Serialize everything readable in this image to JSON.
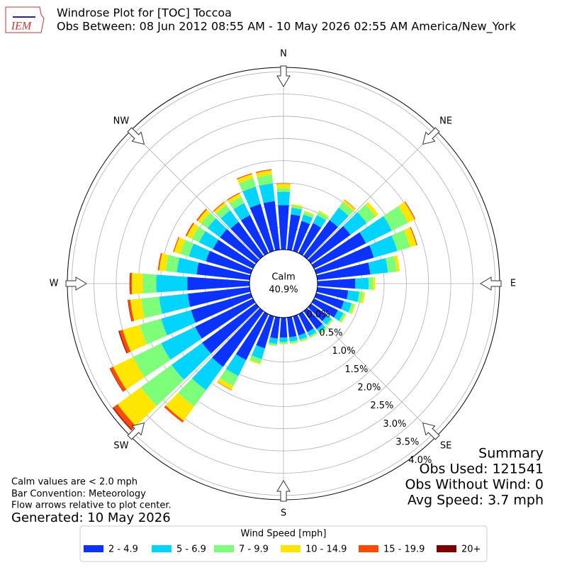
{
  "chart_data": {
    "type": "windrose",
    "logo": "IEM",
    "title": "Windrose Plot for [TOC] Toccoa",
    "subtitle": "Obs Between: 08 Jun 2012 08:55 AM - 10 May 2026 02:55 AM America/New_York",
    "compass_labels": [
      "N",
      "NE",
      "E",
      "SE",
      "S",
      "SW",
      "W",
      "NW"
    ],
    "calm": {
      "label": "Calm",
      "value": 40.9,
      "value_label": "40.9%"
    },
    "ylim": [
      0,
      4.1
    ],
    "yticks": [
      {
        "value": 0,
        "label": "0.0%"
      },
      {
        "value": 0.5,
        "label": "0.5%"
      },
      {
        "value": 1,
        "label": "1.0%"
      },
      {
        "value": 1.5,
        "label": "1.5%"
      },
      {
        "value": 2,
        "label": "2.0%"
      },
      {
        "value": 2.5,
        "label": "2.5%"
      },
      {
        "value": 3,
        "label": "3.0%"
      },
      {
        "value": 3.5,
        "label": "3.5%"
      },
      {
        "value": 4,
        "label": "4.0%"
      }
    ],
    "grid": true,
    "legend_title": "Wind Speed [mph]",
    "series": [
      {
        "name": "2 - 4.9",
        "color": "#0b33ff",
        "values": [
          1.0,
          0.8,
          0.7,
          0.75,
          1.0,
          1.1,
          1.3,
          1.35,
          1.2,
          0.85,
          0.7,
          0.65,
          0.6,
          0.45,
          0.5,
          0.45,
          0.45,
          0.45,
          0.45,
          0.48,
          0.75,
          1.15,
          1.55,
          1.5,
          1.45,
          1.4,
          1.4,
          1.4,
          1.2,
          1.05,
          1.0,
          1.0,
          0.95,
          0.95,
          1.1,
          1.1
        ]
      },
      {
        "name": "5 - 6.9",
        "color": "#00d4ff",
        "values": [
          0.3,
          0.15,
          0.15,
          0.2,
          0.35,
          0.45,
          0.65,
          0.55,
          0.4,
          0.3,
          0.25,
          0.18,
          0.14,
          0.12,
          0.1,
          0.1,
          0.1,
          0.1,
          0.1,
          0.12,
          0.25,
          0.4,
          0.65,
          0.85,
          0.85,
          0.7,
          0.65,
          0.7,
          0.45,
          0.4,
          0.35,
          0.35,
          0.32,
          0.3,
          0.4,
          0.4
        ]
      },
      {
        "name": "7 - 9.9",
        "color": "#7dff7a",
        "values": [
          0.08,
          0.05,
          0.06,
          0.08,
          0.15,
          0.25,
          0.4,
          0.3,
          0.2,
          0.1,
          0.08,
          0.06,
          0.05,
          0.04,
          0.04,
          0.04,
          0.04,
          0.04,
          0.04,
          0.04,
          0.1,
          0.25,
          0.45,
          0.85,
          0.7,
          0.5,
          0.4,
          0.3,
          0.25,
          0.2,
          0.18,
          0.18,
          0.15,
          0.16,
          0.2,
          0.2
        ]
      },
      {
        "name": "10 - 14.9",
        "color": "#ffe600",
        "values": [
          0.1,
          0.03,
          0.03,
          0.03,
          0.06,
          0.08,
          0.17,
          0.15,
          0.07,
          0.05,
          0.05,
          0.03,
          0.02,
          0.01,
          0.01,
          0.01,
          0.01,
          0.01,
          0.01,
          0.01,
          0.03,
          0.1,
          0.4,
          0.65,
          0.5,
          0.4,
          0.25,
          0.25,
          0.15,
          0.15,
          0.13,
          0.1,
          0.07,
          0.08,
          0.1,
          0.1
        ]
      },
      {
        "name": "15 - 19.9",
        "color": "#ff4a00",
        "values": [
          0.01,
          0,
          0,
          0,
          0.01,
          0,
          0.02,
          0.02,
          0,
          0,
          0,
          0,
          0,
          0,
          0,
          0,
          0,
          0,
          0,
          0,
          0,
          0.01,
          0.05,
          0.12,
          0.08,
          0.08,
          0.05,
          0.04,
          0.03,
          0.02,
          0.03,
          0.03,
          0.02,
          0.02,
          0.02,
          0.02
        ]
      },
      {
        "name": "20+",
        "color": "#7f0000",
        "values": [
          0,
          0,
          0,
          0,
          0,
          0,
          0,
          0,
          0,
          0,
          0,
          0,
          0,
          0,
          0,
          0,
          0,
          0,
          0,
          0,
          0,
          0,
          0,
          0.02,
          0.01,
          0.02,
          0.01,
          0.01,
          0,
          0,
          0,
          0,
          0,
          0,
          0,
          0
        ]
      }
    ],
    "notes": [
      "Calm values are < 2.0 mph",
      "Bar Convention: Meteorology",
      "Flow arrows relative to plot center."
    ],
    "generated": "Generated: 10 May 2026",
    "summary": [
      "Summary",
      "Obs Used: 121541",
      "Obs Without Wind: 0",
      "Avg Speed: 3.7 mph"
    ]
  }
}
